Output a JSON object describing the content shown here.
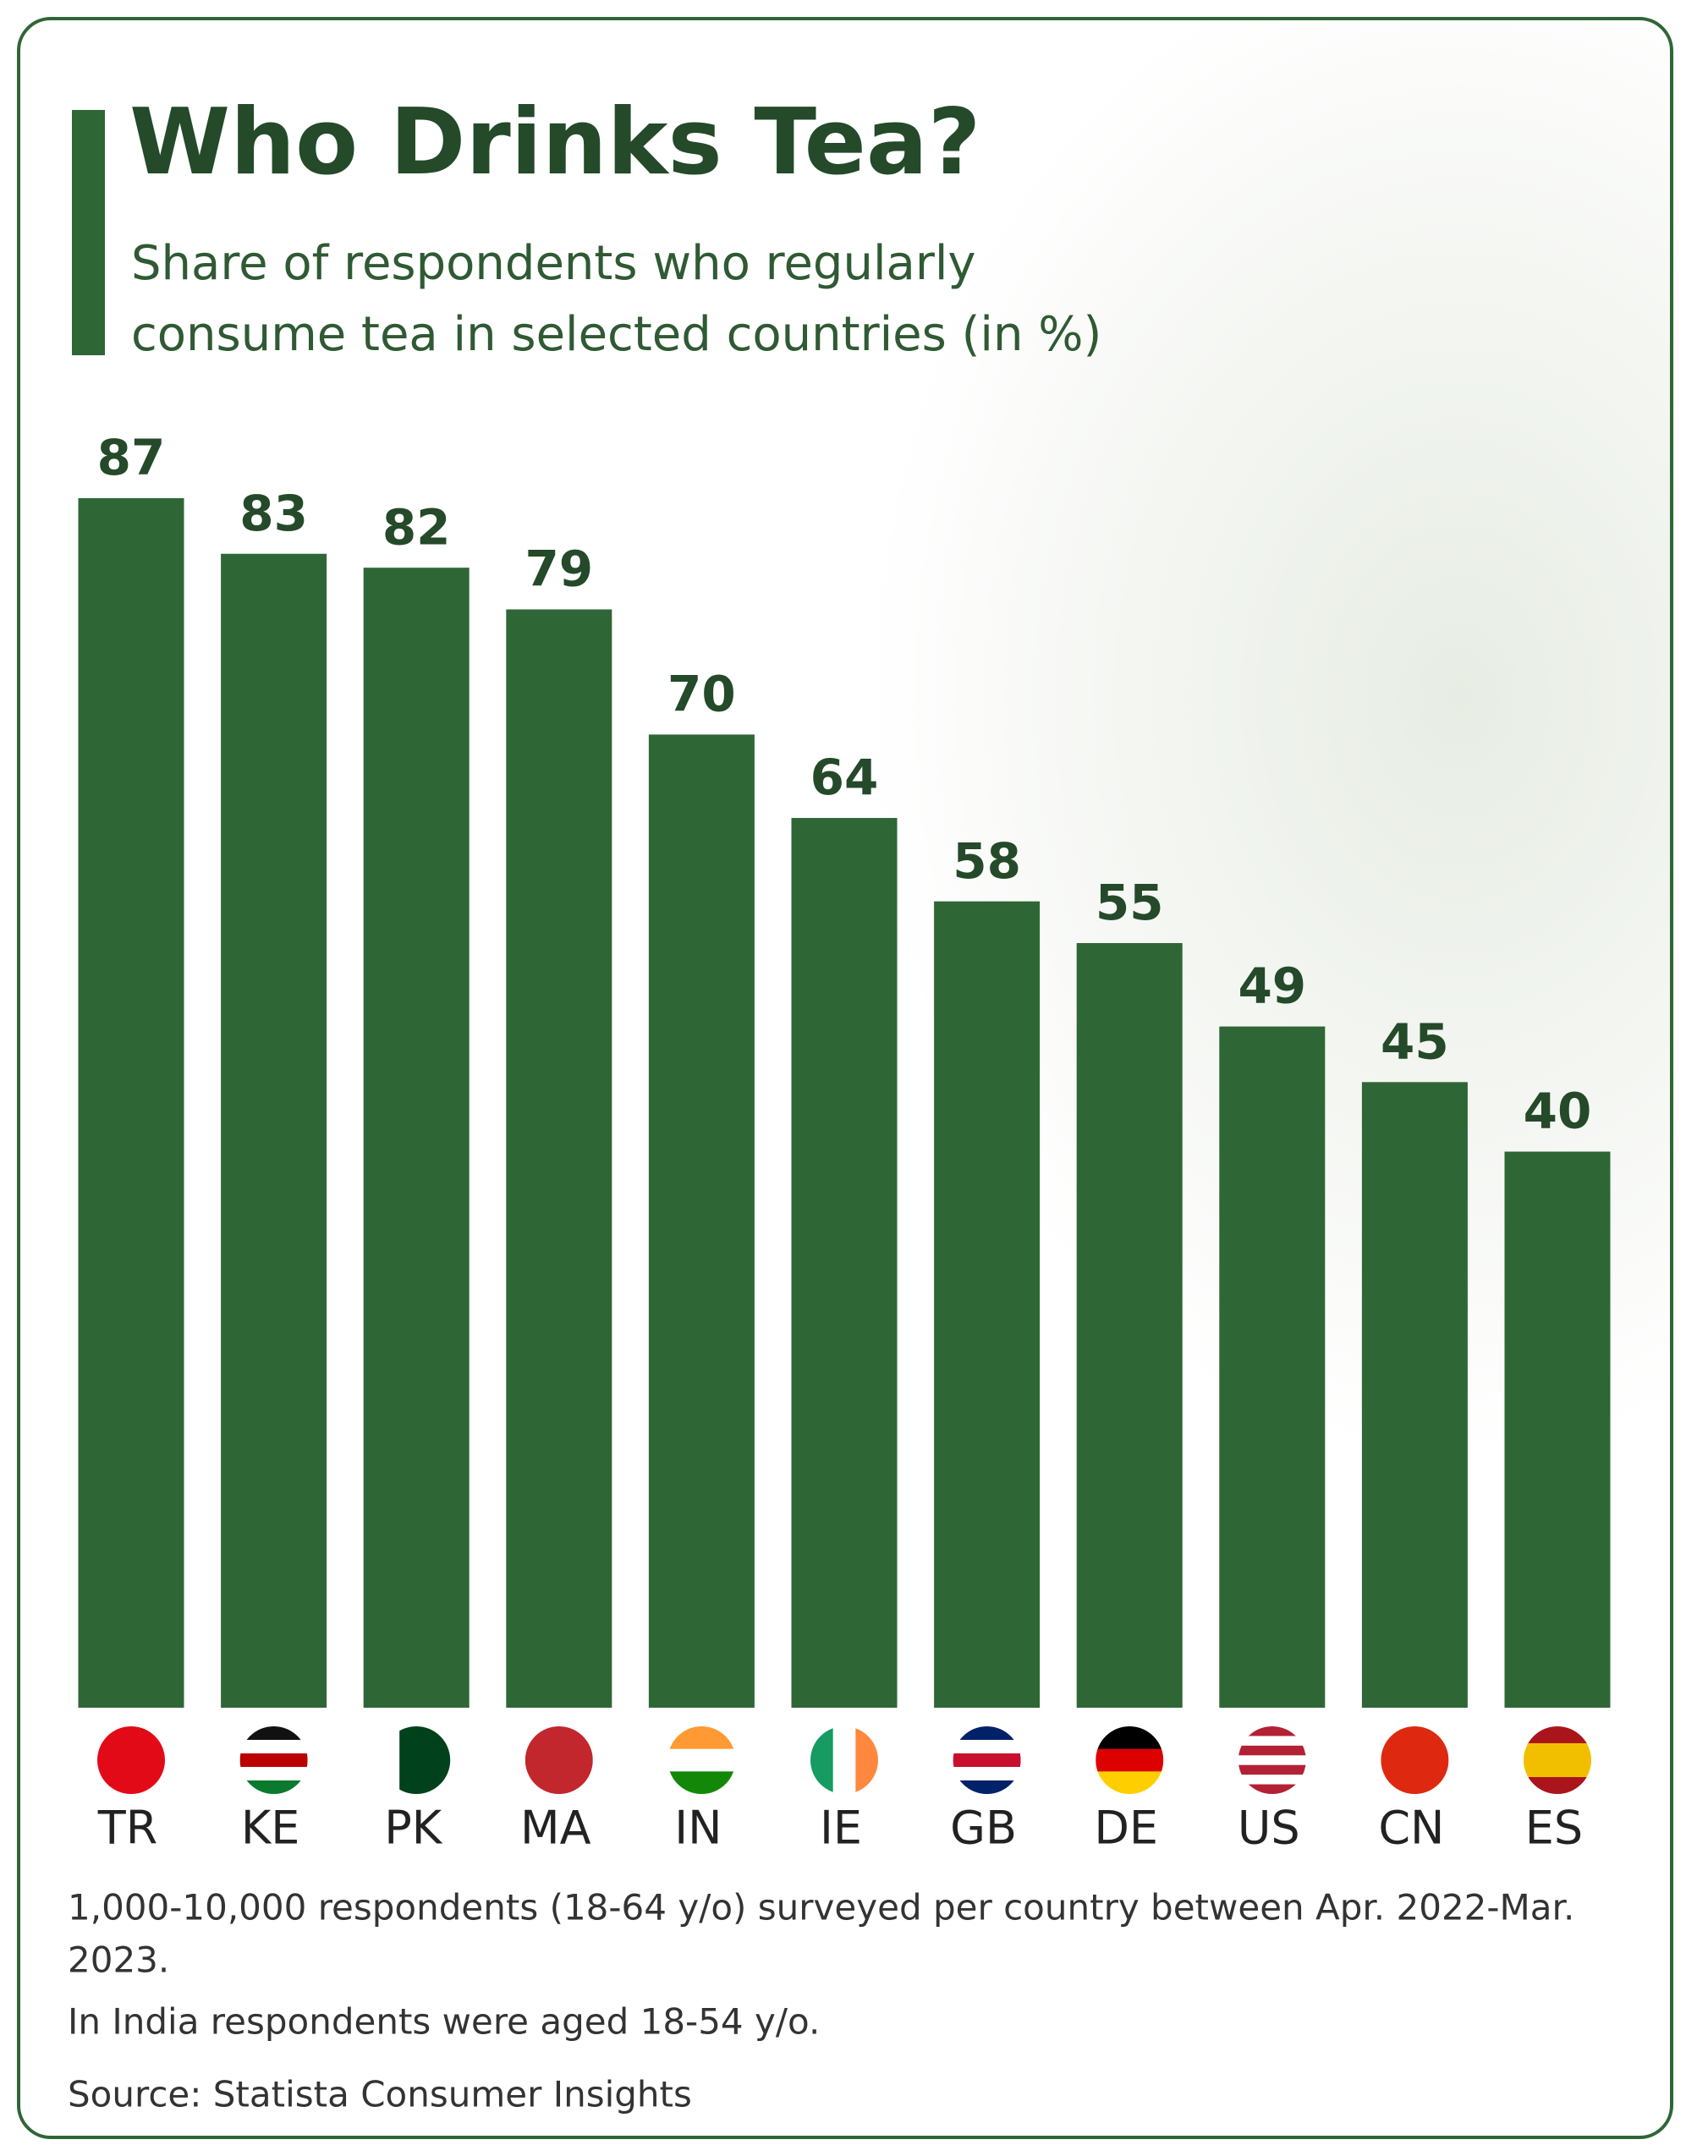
{
  "chart_data": {
    "type": "bar",
    "title": "Who Drinks Tea?",
    "subtitle": "Share of respondents who regularly consume tea in selected countries (in %)",
    "categories": [
      "TR",
      "KE",
      "PK",
      "MA",
      "IN",
      "IE",
      "GB",
      "DE",
      "US",
      "CN",
      "ES"
    ],
    "values": [
      87,
      83,
      82,
      79,
      70,
      64,
      58,
      55,
      49,
      45,
      40
    ],
    "color": "#2f6636",
    "notes": [
      "1,000-10,000 respondents (18-64 y/o) surveyed per country between Apr. 2022-Mar.",
      "2023.",
      "In India respondents were aged 18-54 y/o."
    ],
    "source": "Source: Statista Consumer Insights"
  }
}
